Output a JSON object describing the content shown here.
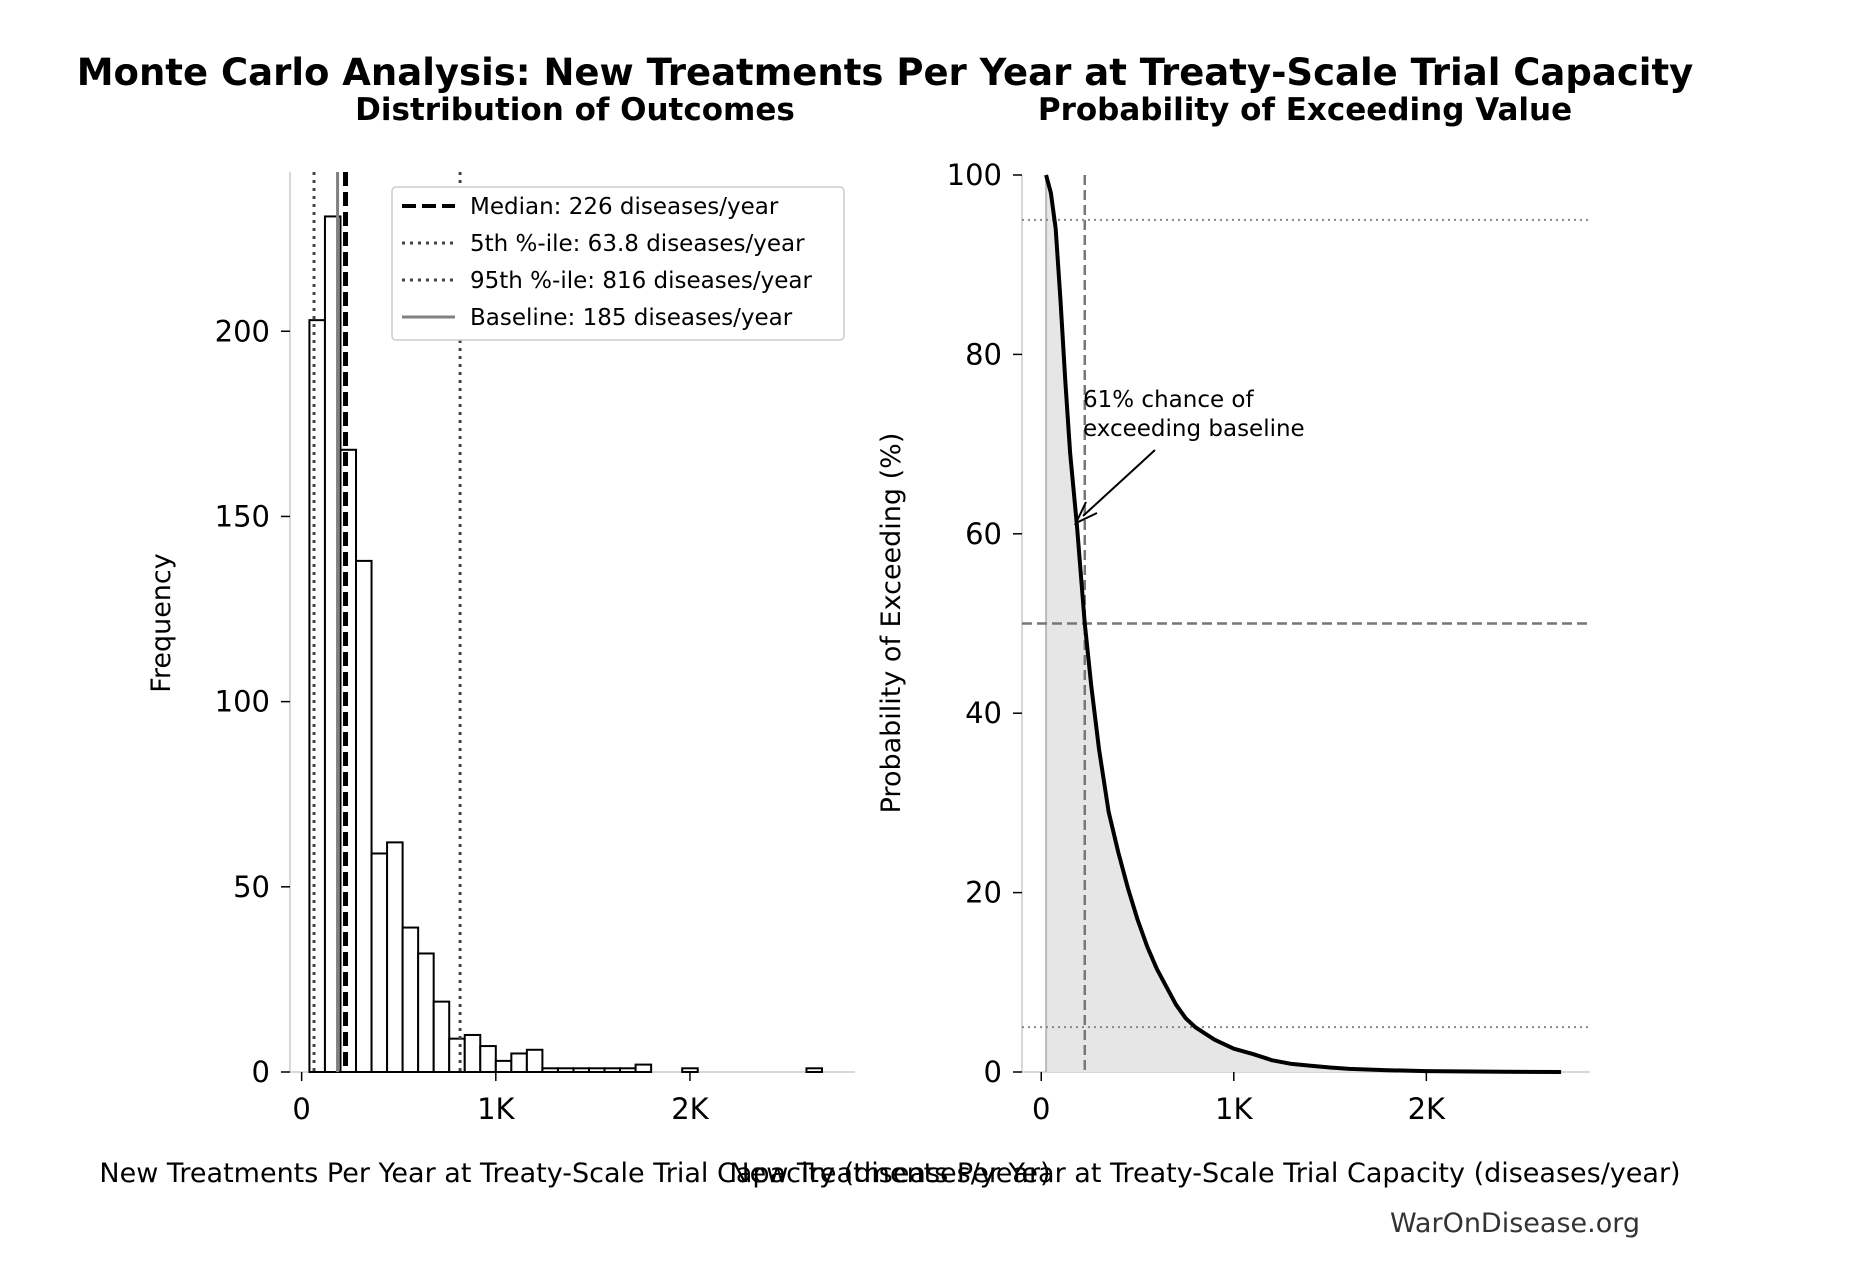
{
  "suptitle": "Monte Carlo Analysis: New Treatments Per Year at Treaty-Scale Trial Capacity",
  "footer": "WarOnDisease.org",
  "colors": {
    "median": "#000000",
    "percentile": "#444444",
    "baseline": "#808080",
    "fill": "#e6e6e6",
    "bar_edge": "#000000"
  },
  "chart_data": [
    {
      "type": "bar",
      "title": "Distribution of Outcomes",
      "xlabel": "New Treatments Per Year at Treaty-Scale Trial Capacity (diseases/year)",
      "ylabel": "Frequency",
      "xlim": [
        -60,
        2850
      ],
      "ylim": [
        0,
        243
      ],
      "xticks": [
        {
          "value": 0,
          "label": "0"
        },
        {
          "value": 1000,
          "label": "1K"
        },
        {
          "value": 2000,
          "label": "2K"
        }
      ],
      "yticks": [
        {
          "value": 0,
          "label": "0"
        },
        {
          "value": 50,
          "label": "50"
        },
        {
          "value": 100,
          "label": "100"
        },
        {
          "value": 150,
          "label": "150"
        },
        {
          "value": 200,
          "label": "200"
        }
      ],
      "bin_width": 80,
      "bin_starts": [
        40,
        120,
        200,
        280,
        360,
        440,
        520,
        600,
        680,
        760,
        840,
        920,
        1000,
        1080,
        1160,
        1240,
        1320,
        1400,
        1480,
        1560,
        1640,
        1720,
        1800,
        1880,
        1960,
        2040,
        2120,
        2200,
        2280,
        2360,
        2440,
        2520,
        2600
      ],
      "values": [
        203,
        231,
        168,
        138,
        59,
        62,
        39,
        32,
        19,
        9,
        10,
        7,
        3,
        5,
        6,
        1,
        1,
        1,
        1,
        1,
        1,
        2,
        0,
        0,
        1,
        0,
        0,
        0,
        0,
        0,
        0,
        0,
        1
      ],
      "reference_lines": [
        {
          "name": "Median: 226 diseases/year",
          "x": 226,
          "style": "dashed",
          "color": "#000000"
        },
        {
          "name": "5th %-ile: 63.8 diseases/year",
          "x": 63.8,
          "style": "dotted",
          "color": "#444444"
        },
        {
          "name": "95th %-ile: 816 diseases/year",
          "x": 816,
          "style": "dotted",
          "color": "#444444"
        },
        {
          "name": "Baseline: 185 diseases/year",
          "x": 185,
          "style": "solid",
          "color": "#808080"
        }
      ],
      "legend_position": "top-right"
    },
    {
      "type": "area",
      "title": "Probability of Exceeding Value",
      "xlabel": "New Treatments Per Year at Treaty-Scale Trial Capacity (diseases/year)",
      "ylabel": "Probability of Exceeding (%)",
      "xlim": [
        -100,
        2850
      ],
      "ylim": [
        0,
        100
      ],
      "xticks": [
        {
          "value": 0,
          "label": "0"
        },
        {
          "value": 1000,
          "label": "1K"
        },
        {
          "value": 2000,
          "label": "2K"
        }
      ],
      "yticks": [
        {
          "value": 0,
          "label": "0"
        },
        {
          "value": 20,
          "label": "20"
        },
        {
          "value": 40,
          "label": "40"
        },
        {
          "value": 60,
          "label": "60"
        },
        {
          "value": 80,
          "label": "80"
        },
        {
          "value": 100,
          "label": "100"
        }
      ],
      "x": [
        25,
        50,
        75,
        100,
        125,
        150,
        185,
        226,
        260,
        300,
        350,
        400,
        450,
        500,
        550,
        600,
        650,
        700,
        750,
        800,
        850,
        900,
        950,
        1000,
        1100,
        1200,
        1300,
        1400,
        1500,
        1600,
        1800,
        2000,
        2400,
        2700
      ],
      "y": [
        100,
        98,
        94,
        86,
        77,
        69,
        61,
        50,
        43,
        36,
        29,
        24.5,
        20.5,
        17,
        14,
        11.5,
        9.5,
        7.5,
        6,
        5,
        4.3,
        3.6,
        3.1,
        2.6,
        2,
        1.3,
        0.9,
        0.7,
        0.5,
        0.35,
        0.2,
        0.1,
        0.03,
        0
      ],
      "reference_lines": [
        {
          "axis": "x",
          "value": 226,
          "style": "dashed"
        },
        {
          "axis": "x",
          "value": 25,
          "style": "solid-light"
        },
        {
          "axis": "y",
          "value": 95,
          "style": "dotted"
        },
        {
          "axis": "y",
          "value": 50,
          "style": "dashed"
        },
        {
          "axis": "y",
          "value": 5,
          "style": "dotted"
        }
      ],
      "annotation": {
        "text": [
          "61% chance of",
          "exceeding baseline"
        ],
        "x": 185,
        "y": 61
      }
    }
  ]
}
